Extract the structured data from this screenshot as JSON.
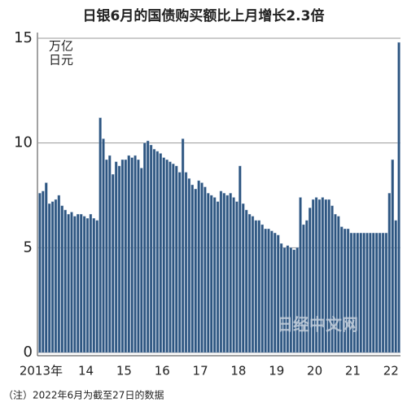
{
  "chart_data": {
    "type": "bar",
    "title": "日银6月的国债购买额比上月增长2.3倍",
    "unit": [
      "万亿",
      "日元"
    ],
    "note": "（注）2022年6月为截至27日的数据",
    "watermark": "日经中文网",
    "color": "#2d5580",
    "ylim": [
      0,
      15
    ],
    "yticks": [
      0,
      5,
      10,
      15
    ],
    "grid": true,
    "categories": [
      "2013年",
      null,
      null,
      null,
      null,
      null,
      null,
      null,
      null,
      null,
      null,
      null,
      "14",
      null,
      null,
      null,
      null,
      null,
      null,
      null,
      null,
      null,
      null,
      null,
      "15",
      null,
      null,
      null,
      null,
      null,
      null,
      null,
      null,
      null,
      null,
      null,
      "16",
      null,
      null,
      null,
      null,
      null,
      null,
      null,
      null,
      null,
      null,
      null,
      "17",
      null,
      null,
      null,
      null,
      null,
      null,
      null,
      null,
      null,
      null,
      null,
      "18",
      null,
      null,
      null,
      null,
      null,
      null,
      null,
      null,
      null,
      null,
      null,
      "19",
      null,
      null,
      null,
      null,
      null,
      null,
      null,
      null,
      null,
      null,
      null,
      "20",
      null,
      null,
      null,
      null,
      null,
      null,
      null,
      null,
      null,
      null,
      null,
      "21",
      null,
      null,
      null,
      null,
      null,
      null,
      null,
      null,
      null,
      null,
      null,
      "22",
      null,
      null,
      null,
      null,
      null
    ],
    "values": [
      7.6,
      7.7,
      8.1,
      7.1,
      7.2,
      7.3,
      7.5,
      7.0,
      6.8,
      6.6,
      6.7,
      6.5,
      6.6,
      6.6,
      6.5,
      6.4,
      6.6,
      6.4,
      6.3,
      11.2,
      10.2,
      9.2,
      9.4,
      8.5,
      9.1,
      8.9,
      9.2,
      9.2,
      9.4,
      9.3,
      9.4,
      9.2,
      8.8,
      10.0,
      10.1,
      9.9,
      9.7,
      9.6,
      9.5,
      9.3,
      9.2,
      9.1,
      9.0,
      8.9,
      8.6,
      10.2,
      8.6,
      8.3,
      8.0,
      7.8,
      8.2,
      8.1,
      7.9,
      7.6,
      7.5,
      7.4,
      7.2,
      7.7,
      7.6,
      7.5,
      7.6,
      7.4,
      7.2,
      8.9,
      7.1,
      6.8,
      6.6,
      6.5,
      6.3,
      6.3,
      6.1,
      5.9,
      5.9,
      5.8,
      5.7,
      5.6,
      5.2,
      5.0,
      5.1,
      5.0,
      4.9,
      5.0,
      7.4,
      6.1,
      6.3,
      6.9,
      7.3,
      7.4,
      7.3,
      7.4,
      7.3,
      7.3,
      7.0,
      6.6,
      6.5,
      6.0,
      5.9,
      5.9,
      5.7,
      5.7,
      5.7,
      5.7,
      5.7,
      5.7,
      5.7,
      5.7,
      5.7,
      5.7,
      5.7,
      5.7,
      7.6,
      9.2,
      6.3,
      14.8
    ]
  }
}
